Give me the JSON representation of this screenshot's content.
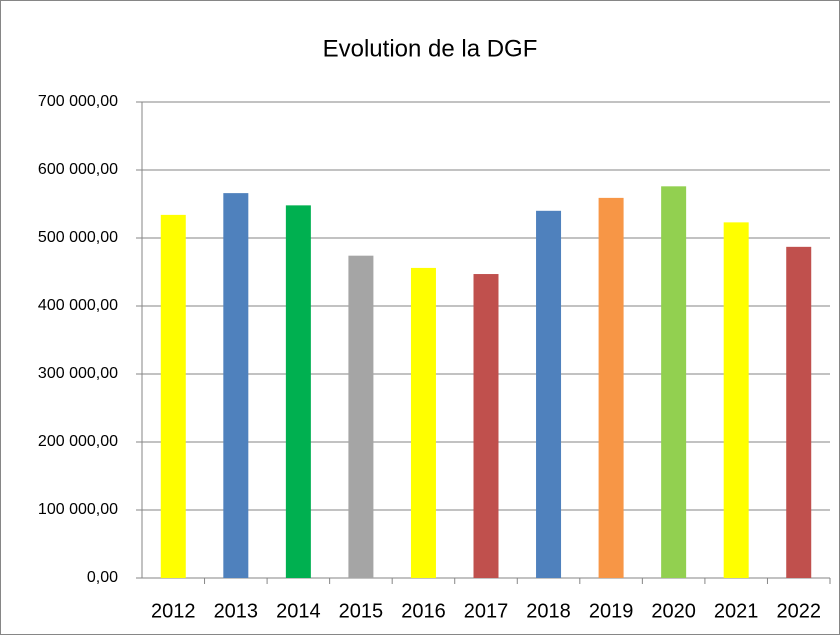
{
  "chart_data": {
    "type": "bar",
    "title": "Evolution de la DGF",
    "categories": [
      "2012",
      "2013",
      "2014",
      "2015",
      "2016",
      "2017",
      "2018",
      "2019",
      "2020",
      "2021",
      "2022"
    ],
    "values": [
      534000,
      566000,
      548000,
      474000,
      456000,
      447000,
      540000,
      559000,
      576000,
      523000,
      487000
    ],
    "colors": [
      "#ffff00",
      "#4f81bd",
      "#00b050",
      "#a5a5a5",
      "#ffff00",
      "#c0504d",
      "#4f81bd",
      "#f79646",
      "#92d050",
      "#ffff00",
      "#c0504d"
    ],
    "ylim": [
      0,
      700000
    ],
    "yticks": [
      {
        "value": 0,
        "label": "0,00"
      },
      {
        "value": 100000,
        "label": "100 000,00"
      },
      {
        "value": 200000,
        "label": "200 000,00"
      },
      {
        "value": 300000,
        "label": "300 000,00"
      },
      {
        "value": 400000,
        "label": "400 000,00"
      },
      {
        "value": 500000,
        "label": "500 000,00"
      },
      {
        "value": 600000,
        "label": "600 000,00"
      },
      {
        "value": 700000,
        "label": "700 000,00"
      }
    ],
    "grid": true
  }
}
